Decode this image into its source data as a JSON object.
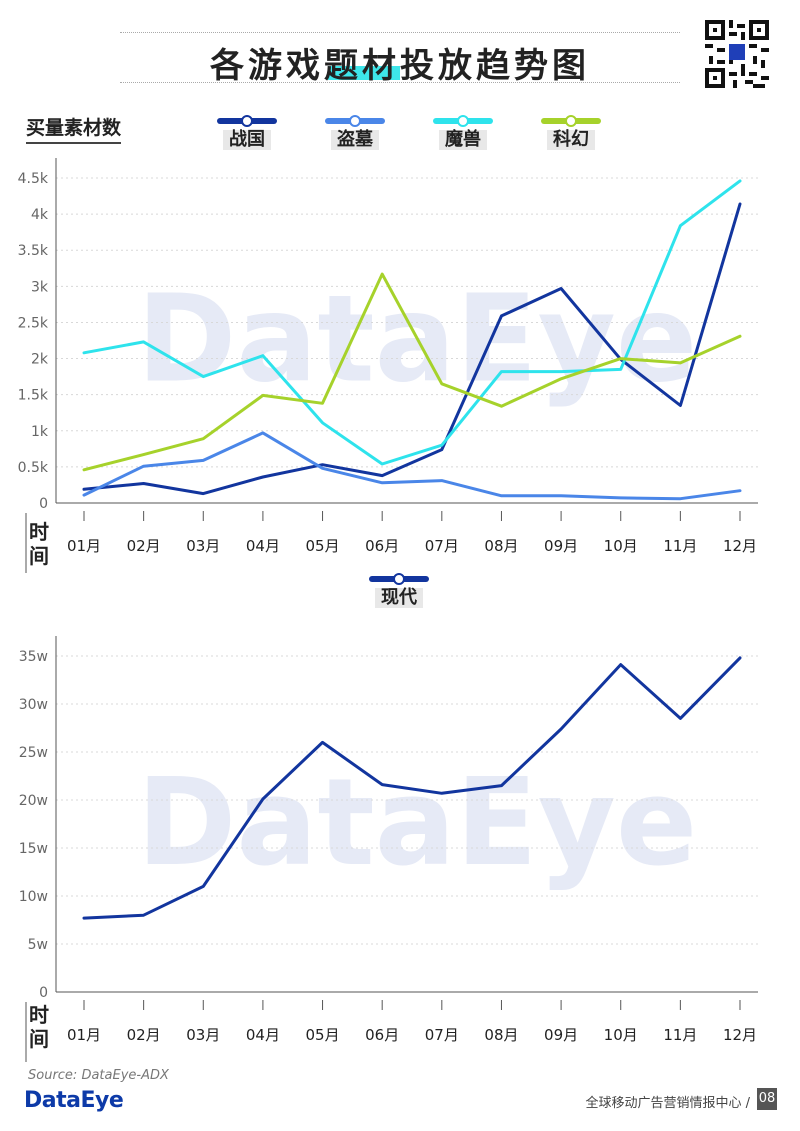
{
  "header": {
    "title": "各游戏题材投放趋势图",
    "title_highlight_color": "#3ee6ea"
  },
  "chart1": {
    "ylabel": "买量素材数",
    "xaxis_name": "时间",
    "legend": [
      {
        "label": "战国",
        "color": "#12359e"
      },
      {
        "label": "盗墓",
        "color": "#4a86e8"
      },
      {
        "label": "魔兽",
        "color": "#2ee3ec"
      },
      {
        "label": "科幻",
        "color": "#a6d22b"
      }
    ]
  },
  "chart2": {
    "xaxis_name": "时间",
    "legend": [
      {
        "label": "现代",
        "color": "#12359e"
      }
    ]
  },
  "footer": {
    "source": "Source: DataEye-ADX",
    "brand": "DataEye",
    "org": "全球移动广告营销情报中心 /",
    "page": "08"
  },
  "watermark": "DataEye",
  "chart_data": [
    {
      "type": "line",
      "categories": [
        "01月",
        "02月",
        "03月",
        "04月",
        "05月",
        "06月",
        "07月",
        "08月",
        "09月",
        "10月",
        "11月",
        "12月"
      ],
      "ylabel": "买量素材数",
      "xlabel": "时间",
      "ylim": [
        0,
        4500
      ],
      "yticks": [
        0,
        500,
        1000,
        1500,
        2000,
        2500,
        3000,
        3500,
        4000,
        4500
      ],
      "ytick_labels": [
        "0",
        "0.5k",
        "1k",
        "1.5k",
        "2k",
        "2.5k",
        "3k",
        "3.5k",
        "4k",
        "4.5k"
      ],
      "grid": true,
      "series": [
        {
          "name": "战国",
          "color": "#12359e",
          "values": [
            190,
            270,
            130,
            360,
            530,
            380,
            740,
            2590,
            2970,
            1990,
            1350,
            4140
          ]
        },
        {
          "name": "盗墓",
          "color": "#4a86e8",
          "values": [
            110,
            510,
            590,
            970,
            480,
            280,
            310,
            100,
            100,
            70,
            60,
            170
          ]
        },
        {
          "name": "魔兽",
          "color": "#2ee3ec",
          "values": [
            2080,
            2230,
            1750,
            2040,
            1110,
            540,
            800,
            1820,
            1820,
            1850,
            3840,
            4460
          ]
        },
        {
          "name": "科幻",
          "color": "#a6d22b",
          "values": [
            460,
            670,
            890,
            1490,
            1380,
            3170,
            1650,
            1340,
            1720,
            2000,
            1940,
            2310
          ]
        }
      ]
    },
    {
      "type": "line",
      "categories": [
        "01月",
        "02月",
        "03月",
        "04月",
        "05月",
        "06月",
        "07月",
        "08月",
        "09月",
        "10月",
        "11月",
        "12月"
      ],
      "xlabel": "时间",
      "ylim": [
        0,
        350000
      ],
      "yticks": [
        0,
        50000,
        100000,
        150000,
        200000,
        250000,
        300000,
        350000
      ],
      "ytick_labels": [
        "0",
        "5w",
        "10w",
        "15w",
        "20w",
        "25w",
        "30w",
        "35w"
      ],
      "grid": true,
      "series": [
        {
          "name": "现代",
          "color": "#12359e",
          "values": [
            77000,
            80000,
            110000,
            201000,
            260000,
            216000,
            207000,
            215000,
            274000,
            341000,
            285000,
            348000
          ]
        }
      ]
    }
  ]
}
